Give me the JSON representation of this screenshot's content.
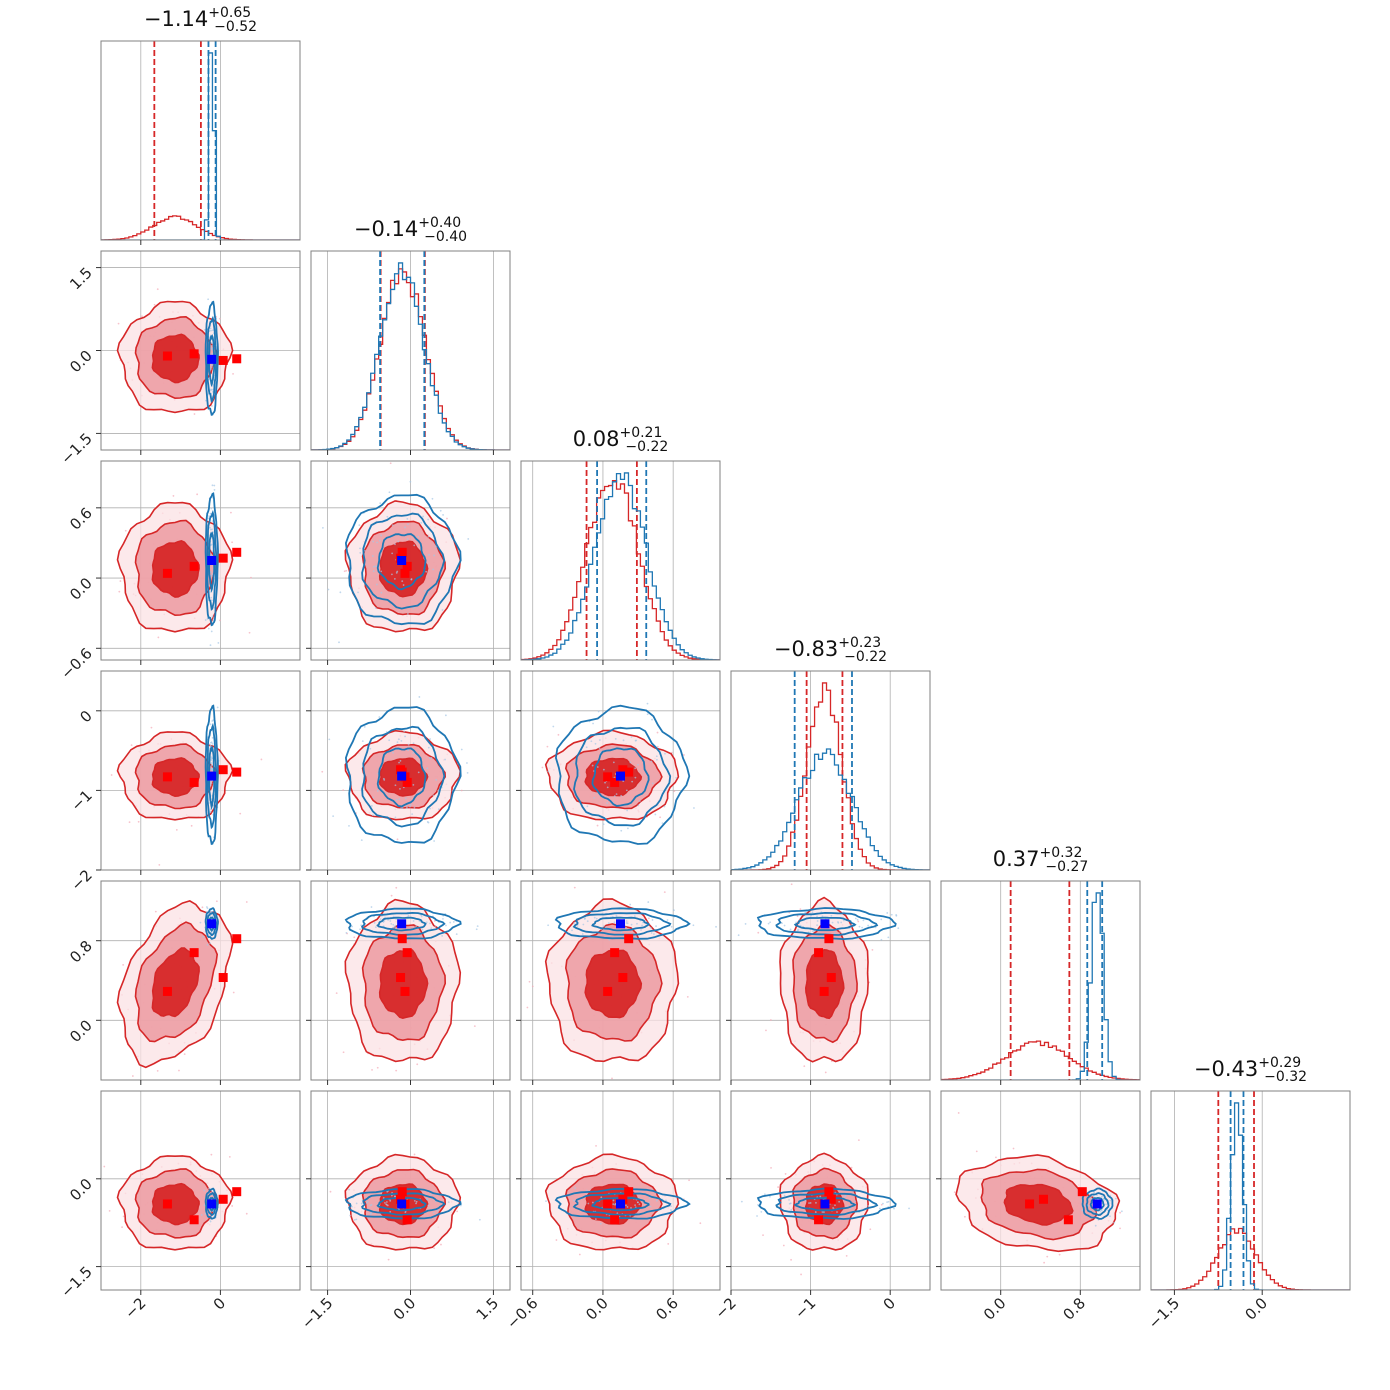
{
  "colors": {
    "red": "#d62728",
    "blue": "#1f77b4",
    "truth_red": "#ff0000",
    "truth_blue": "#0000ff"
  },
  "titles": [
    {
      "median": "−1.14",
      "plus": "+0.65",
      "minus": "−0.52"
    },
    {
      "median": "−0.14",
      "plus": "+0.40",
      "minus": "−0.40"
    },
    {
      "median": "0.08",
      "plus": "+0.21",
      "minus": "−0.22"
    },
    {
      "median": "−0.83",
      "plus": "+0.23",
      "minus": "−0.22"
    },
    {
      "median": "0.37",
      "plus": "+0.32",
      "minus": "−0.27"
    },
    {
      "median": "−0.43",
      "plus": "+0.29",
      "minus": "−0.32"
    }
  ],
  "chart_data": {
    "type": "corner",
    "title": "",
    "parameters": [
      {
        "index": 0,
        "range": [
          -3.0,
          2.0
        ],
        "ticks": [
          -2,
          0
        ],
        "tick_labels": [
          "−2",
          "0"
        ]
      },
      {
        "index": 1,
        "range": [
          -1.8,
          1.8
        ],
        "ticks": [
          -1.5,
          0.0,
          1.5
        ],
        "tick_labels": [
          "−1.5",
          "0.0",
          "1.5"
        ]
      },
      {
        "index": 2,
        "range": [
          -0.7,
          1.0
        ],
        "ticks": [
          -0.6,
          0.0,
          0.6
        ],
        "tick_labels": [
          "−0.6",
          "0.0",
          "0.6"
        ]
      },
      {
        "index": 3,
        "range": [
          -2.0,
          0.5
        ],
        "ticks": [
          -2,
          -1,
          0
        ],
        "tick_labels": [
          "−2",
          "−1",
          "0"
        ]
      },
      {
        "index": 4,
        "range": [
          -0.6,
          1.4
        ],
        "ticks": [
          0.0,
          0.8
        ],
        "tick_labels": [
          "0.0",
          "0.8"
        ]
      },
      {
        "index": 5,
        "range": [
          -1.9,
          1.5
        ],
        "ticks": [
          -1.5,
          0.0
        ],
        "tick_labels": [
          "−1.5",
          "0.0"
        ]
      }
    ],
    "series": [
      {
        "color_key": "red",
        "means": [
          -1.14,
          -0.14,
          0.08,
          -0.83,
          0.37,
          -0.43
        ],
        "sigmas": [
          0.55,
          0.4,
          0.22,
          0.22,
          0.32,
          0.32
        ],
        "quantiles": [
          [
            -1.66,
            -0.49
          ],
          [
            -0.54,
            0.26
          ],
          [
            -0.14,
            0.29
          ],
          [
            -1.05,
            -0.6
          ],
          [
            0.1,
            0.69
          ],
          [
            -0.75,
            -0.14
          ]
        ],
        "correlations": [
          [
            1,
            0,
            0,
            0,
            0.35,
            0
          ],
          [
            0,
            1,
            0,
            0,
            0,
            0
          ],
          [
            0,
            0,
            1,
            0,
            0,
            0
          ],
          [
            0,
            0,
            0,
            1,
            0,
            0
          ],
          [
            0.35,
            0,
            0,
            0,
            1,
            -0.2
          ],
          [
            0,
            0,
            0,
            0,
            -0.2,
            1
          ]
        ],
        "truths": [
          [
            -1.33,
            -0.1,
            0.04,
            -0.83,
            0.29,
            -0.43
          ],
          [
            -0.66,
            -0.06,
            0.1,
            -0.9,
            0.68,
            -0.7
          ],
          [
            0.07,
            -0.18,
            0.17,
            -0.74,
            0.43,
            -0.35
          ],
          [
            0.41,
            -0.15,
            0.22,
            -0.77,
            0.82,
            -0.22
          ]
        ]
      },
      {
        "color_key": "blue",
        "means": [
          -0.22,
          -0.16,
          0.15,
          -0.82,
          0.97,
          -0.43
        ],
        "sigmas": [
          0.06,
          0.4,
          0.22,
          0.34,
          0.06,
          0.1
        ],
        "quantiles": [
          [
            -0.3,
            -0.12
          ],
          [
            -0.55,
            0.25
          ],
          [
            -0.05,
            0.37
          ],
          [
            -1.2,
            -0.48
          ],
          [
            0.87,
            1.02
          ],
          [
            -0.54,
            -0.32
          ]
        ],
        "correlations": [
          [
            1,
            0,
            0,
            0,
            0,
            0
          ],
          [
            0,
            1,
            0,
            0,
            0,
            0
          ],
          [
            0,
            0,
            1,
            0,
            0,
            0
          ],
          [
            0,
            0,
            0,
            1,
            0,
            0
          ],
          [
            0,
            0,
            0,
            0,
            1,
            0
          ],
          [
            0,
            0,
            0,
            0,
            0,
            1
          ]
        ],
        "truths": [
          [
            -0.22,
            -0.16,
            0.15,
            -0.82,
            0.97,
            -0.43
          ]
        ]
      }
    ],
    "grid": true,
    "legend": "none"
  }
}
